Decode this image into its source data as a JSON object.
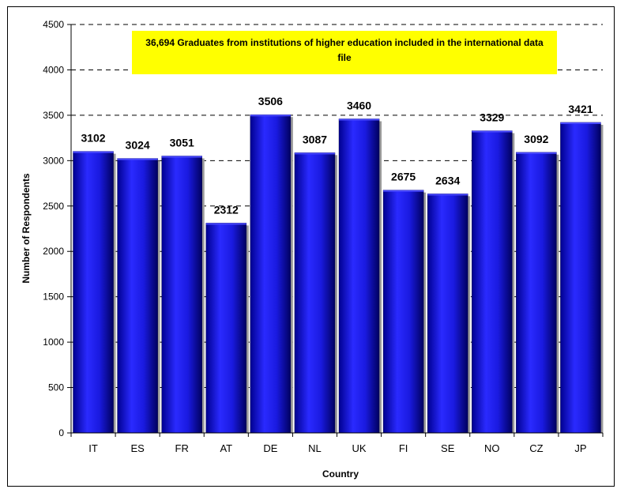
{
  "chart_data": {
    "type": "bar",
    "categories": [
      "IT",
      "ES",
      "FR",
      "AT",
      "DE",
      "NL",
      "UK",
      "FI",
      "SE",
      "NO",
      "CZ",
      "JP"
    ],
    "values": [
      3102,
      3024,
      3051,
      2312,
      3506,
      3087,
      3460,
      2675,
      2634,
      3329,
      3092,
      3421
    ],
    "annotation": "36,694 Graduates from institutions of higher education included in the international data file",
    "xlabel": "Country",
    "ylabel": "Number of Respondents",
    "ylim": [
      0,
      4500
    ],
    "yticks": [
      0,
      500,
      1000,
      1500,
      2000,
      2500,
      3000,
      3500,
      4000,
      4500
    ],
    "grid": "dashed horizontal",
    "colors": {
      "bar_light": "#2a2aff",
      "bar_dark": "#000080",
      "annotation_bg": "#ffff00"
    }
  }
}
